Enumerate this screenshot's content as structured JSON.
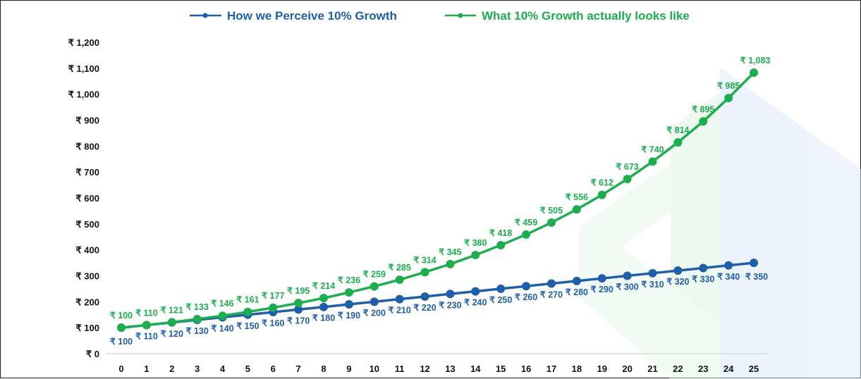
{
  "chart_data": {
    "type": "line",
    "title": "",
    "xlabel": "",
    "ylabel": "",
    "x": [
      0,
      1,
      2,
      3,
      4,
      5,
      6,
      7,
      8,
      9,
      10,
      11,
      12,
      13,
      14,
      15,
      16,
      17,
      18,
      19,
      20,
      21,
      22,
      23,
      24,
      25
    ],
    "ylim": [
      0,
      1200
    ],
    "y_ticks": [
      0,
      100,
      200,
      300,
      400,
      500,
      600,
      700,
      800,
      900,
      1000,
      1100,
      1200
    ],
    "y_tick_labels": [
      "₹ 0",
      "₹ 100",
      "₹ 200",
      "₹ 300",
      "₹ 400",
      "₹ 500",
      "₹ 600",
      "₹ 700",
      "₹ 800",
      "₹ 900",
      "₹ 1,000",
      "₹ 1,100",
      "₹ 1,200"
    ],
    "currency_prefix": "₹ ",
    "grid": false,
    "legend_position": "top",
    "series": [
      {
        "name": "How we Perceive 10% Growth",
        "color": "#1f5ea8",
        "label_position": "below",
        "values": [
          100,
          110,
          120,
          130,
          140,
          150,
          160,
          170,
          180,
          190,
          200,
          210,
          220,
          230,
          240,
          250,
          260,
          270,
          280,
          290,
          300,
          310,
          320,
          330,
          340,
          350
        ]
      },
      {
        "name": "What 10% Growth actually looks like",
        "color": "#1cad4f",
        "label_position": "above",
        "values": [
          100,
          110,
          121,
          133,
          146,
          161,
          177,
          195,
          214,
          236,
          259,
          285,
          314,
          345,
          380,
          418,
          459,
          505,
          556,
          612,
          673,
          740,
          814,
          895,
          985,
          1083
        ]
      }
    ]
  }
}
